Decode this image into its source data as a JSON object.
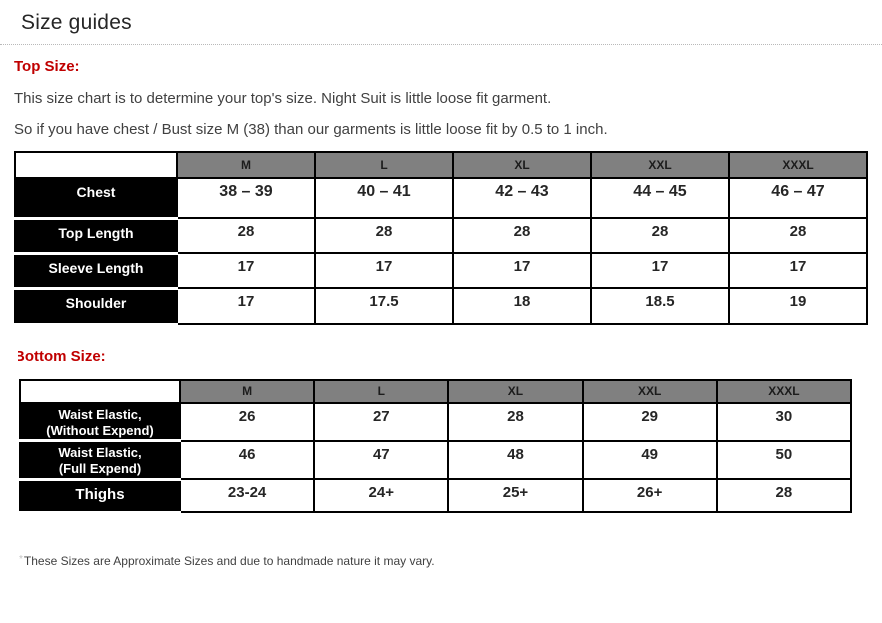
{
  "page": {
    "title": "Size guides"
  },
  "colors": {
    "heading_red": "#c00000",
    "column_header_gray": "#808080",
    "row_label_black": "#000000"
  },
  "top_size": {
    "heading": "Top Size:",
    "paragraphs": {
      "p1": "This size chart is to determine your top's size. Night Suit is little loose fit garment.",
      "p2": "So if you have chest / Bust size M (38) than our garments is little loose fit by 0.5 to 1 inch."
    },
    "table": {
      "columns": [
        "M",
        "L",
        "XL",
        "XXL",
        "XXXL"
      ],
      "rows": [
        {
          "label_lines": [
            "Chest"
          ],
          "values": [
            "38 – 39",
            "40 – 41",
            "42 – 43",
            "44 – 45",
            "46 – 47"
          ]
        },
        {
          "label_lines": [
            "Top Length"
          ],
          "values": [
            "28",
            "28",
            "28",
            "28",
            "28"
          ]
        },
        {
          "label_lines": [
            "Sleeve Length"
          ],
          "values": [
            "17",
            "17",
            "17",
            "17",
            "17"
          ]
        },
        {
          "label_lines": [
            "Shoulder"
          ],
          "values": [
            "17",
            "17.5",
            "18",
            "18.5",
            "19"
          ]
        }
      ]
    }
  },
  "bottom_size": {
    "heading": "Bottom Size:",
    "table": {
      "columns": [
        "M",
        "L",
        "XL",
        "XXL",
        "XXXL"
      ],
      "rows": [
        {
          "label_lines": [
            "Waist Elastic,",
            "(Without Expend)"
          ],
          "values": [
            "26",
            "27",
            "28",
            "29",
            "30"
          ]
        },
        {
          "label_lines": [
            "Waist Elastic,",
            "(Full Expend)"
          ],
          "values": [
            "46",
            "47",
            "48",
            "49",
            "50"
          ]
        },
        {
          "label_lines": [
            "Thighs"
          ],
          "values": [
            "23-24",
            "24+",
            "25+",
            "26+",
            "28"
          ]
        }
      ]
    }
  },
  "footnote": {
    "marker": "*",
    "text": "These Sizes are Approximate Sizes and due to handmade nature it may vary."
  }
}
